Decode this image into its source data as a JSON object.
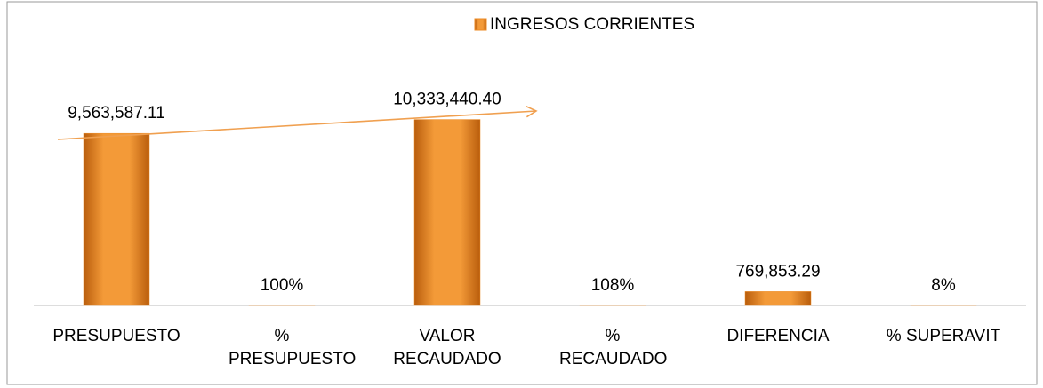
{
  "chart_data": {
    "type": "bar",
    "categories": [
      "PRESUPUESTO",
      "% PRESUPUESTO",
      "VALOR RECAUDADO",
      "% RECAUDADO",
      "DIFERENCIA",
      "% SUPERAVIT"
    ],
    "series": [
      {
        "name": "INGRESOS CORRIENTES",
        "color": "#ed8b25",
        "values": [
          9563587.11,
          100,
          10333440.4,
          108,
          769853.29,
          8
        ],
        "value_labels": [
          "9,563,587.11",
          "100%",
          "10,333,440.40",
          "108%",
          "769,853.29",
          "8%"
        ]
      }
    ],
    "ylim": [
      0,
      15000000
    ],
    "legend": "top"
  }
}
